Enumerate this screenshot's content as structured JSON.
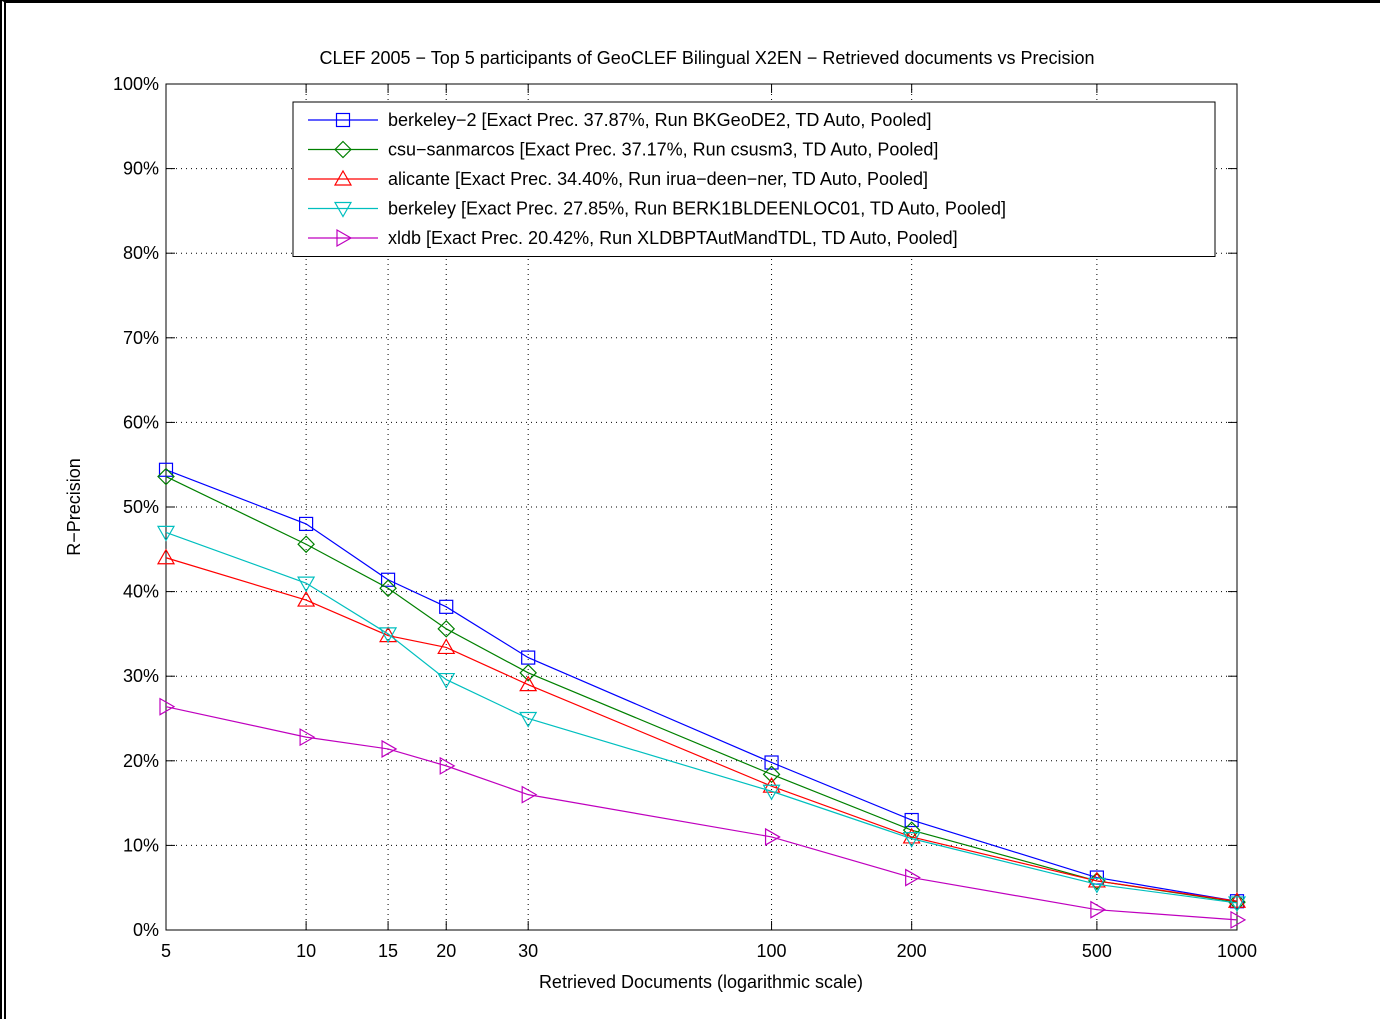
{
  "chart_data": {
    "type": "line",
    "title": "CLEF 2005 − Top 5 participants of GeoCLEF Bilingual X2EN − Retrieved documents vs Precision",
    "xlabel": "Retrieved Documents (logarithmic scale)",
    "ylabel": "R−Precision",
    "x_scale": "log",
    "xlim": [
      5,
      1000
    ],
    "ylim": [
      0,
      100
    ],
    "grid": true,
    "legend_position": "top-right",
    "x": [
      5,
      10,
      15,
      20,
      30,
      100,
      200,
      500,
      1000
    ],
    "x_tick_labels": [
      "5",
      "10",
      "15",
      "20",
      "30",
      "100",
      "200",
      "500",
      "1000"
    ],
    "y_ticks": [
      0,
      10,
      20,
      30,
      40,
      50,
      60,
      70,
      80,
      90,
      100
    ],
    "y_tick_labels": [
      "0%",
      "10%",
      "20%",
      "30%",
      "40%",
      "50%",
      "60%",
      "70%",
      "80%",
      "90%",
      "100%"
    ],
    "series": [
      {
        "name": "berkeley−2 [Exact Prec. 37.87%, Run BKGeoDE2, TD Auto, Pooled]",
        "color": "#0000ff",
        "marker": "square",
        "values": [
          54.4,
          48.0,
          41.4,
          38.2,
          32.2,
          19.8,
          13.0,
          6.2,
          3.4
        ]
      },
      {
        "name": "csu−sanmarcos [Exact Prec. 37.17%, Run csusm3, TD Auto, Pooled]",
        "color": "#008000",
        "marker": "diamond",
        "values": [
          53.6,
          45.6,
          40.4,
          35.6,
          30.4,
          18.4,
          11.8,
          5.8,
          3.3
        ]
      },
      {
        "name": "alicante [Exact Prec. 34.40%, Run irua−deen−ner, TD Auto, Pooled]",
        "color": "#ff0000",
        "marker": "triangle-up",
        "values": [
          44.0,
          39.0,
          34.8,
          33.4,
          29.0,
          17.0,
          11.0,
          5.8,
          3.4
        ]
      },
      {
        "name": "berkeley [Exact Prec. 27.85%, Run BERK1BLDEENLOC01, TD Auto, Pooled]",
        "color": "#00bfbf",
        "marker": "triangle-down",
        "values": [
          47.0,
          41.0,
          35.0,
          29.6,
          25.0,
          16.4,
          10.8,
          5.4,
          3.2
        ]
      },
      {
        "name": "xldb [Exact Prec. 20.42%, Run XLDBPTAutMandTDL, TD Auto, Pooled]",
        "color": "#bf00bf",
        "marker": "triangle-right",
        "values": [
          26.4,
          22.8,
          21.4,
          19.4,
          16.0,
          11.0,
          6.2,
          2.4,
          1.2
        ]
      }
    ]
  }
}
